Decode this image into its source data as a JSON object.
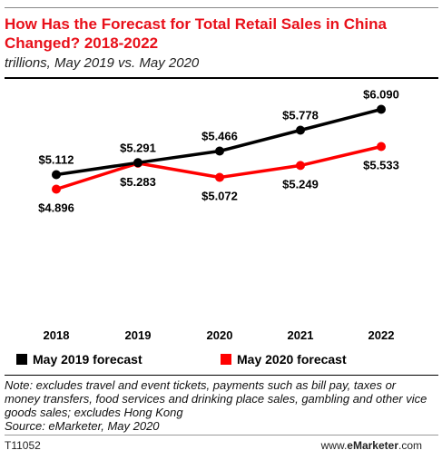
{
  "header": {
    "title": "How Has the Forecast for Total Retail Sales in China Changed? 2018-2022",
    "subtitle": "trillions, May 2019 vs. May 2020"
  },
  "chart_data": {
    "type": "line",
    "title": "How Has the Forecast for Total Retail Sales in China Changed? 2018-2022",
    "subtitle": "trillions, May 2019 vs. May 2020",
    "x": [
      "2018",
      "2019",
      "2020",
      "2021",
      "2022"
    ],
    "ylim": [
      4.4,
      6.3
    ],
    "grid": false,
    "legend_position": "bottom",
    "series": [
      {
        "name": "May 2019 forecast",
        "color": "#000000",
        "values": [
          5.112,
          5.291,
          5.466,
          5.778,
          6.09
        ],
        "labels": [
          "$5.112",
          "$5.291",
          "$5.466",
          "$5.778",
          "$6.090"
        ],
        "label_position": "above"
      },
      {
        "name": "May 2020 forecast",
        "color": "#ff0000",
        "values": [
          4.896,
          5.283,
          5.072,
          5.249,
          5.533
        ],
        "labels": [
          "$4.896",
          "$5.283",
          "$5.072",
          "$5.249",
          "$5.533"
        ],
        "label_position": "below"
      }
    ]
  },
  "footer": {
    "note": "Note: excludes travel and event tickets, payments such as bill pay, taxes or money transfers, food services and drinking place sales, gambling and other vice goods sales; excludes Hong Kong",
    "source": "Source: eMarketer, May 2020",
    "id": "T11052",
    "site_prefix": "www.",
    "site_brand": "eMarketer",
    "site_suffix": ".com"
  }
}
